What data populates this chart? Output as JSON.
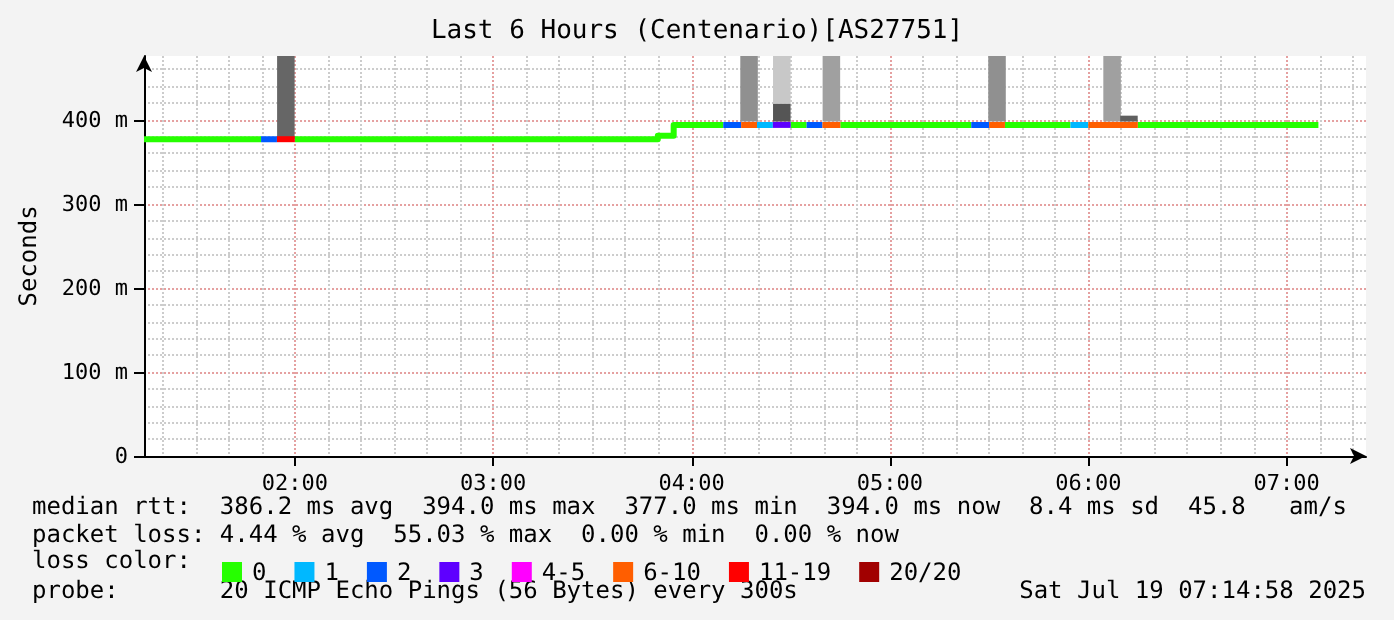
{
  "chart_data": {
    "type": "line",
    "title": "Last 6 Hours (Centenario)[AS27751]",
    "ylabel": "Seconds",
    "legend_title": "loss color:",
    "xlim": [
      1.24,
      7.4
    ],
    "xticks": [
      {
        "value": 2,
        "label": "02:00"
      },
      {
        "value": 3,
        "label": "03:00"
      },
      {
        "value": 4,
        "label": "04:00"
      },
      {
        "value": 5,
        "label": "05:00"
      },
      {
        "value": 6,
        "label": "06:00"
      },
      {
        "value": 7,
        "label": "07:00"
      }
    ],
    "ylim": [
      0,
      476
    ],
    "yticks": [
      0,
      {
        "value": 100,
        "label": "100 m"
      },
      {
        "value": 200,
        "label": "200 m"
      },
      {
        "value": 300,
        "label": "300 m"
      },
      {
        "value": 400,
        "label": "400 m"
      }
    ],
    "grid": true,
    "legend": "bottom",
    "marker": "none",
    "line_style": "solid",
    "series": [
      {
        "type": "bar",
        "x": [
          1.955,
          4.29,
          4.455,
          4.705,
          5.54,
          6.12
        ],
        "base": [
          377,
          398,
          419,
          398,
          398,
          398
        ],
        "values": [
          99,
          78,
          57,
          78,
          78,
          78
        ],
        "colors": [
          "#666666",
          "#909090",
          "#c8c8c8",
          "#a0a0a0",
          "#909090",
          "#a0a0a0"
        ]
      },
      {
        "type": "bar",
        "x": [
          4.455,
          6.205
        ],
        "base": [
          398,
          398
        ],
        "values": [
          21,
          7
        ],
        "colors": [
          "#555555",
          "#606060"
        ]
      },
      {
        "name": "0",
        "color": "#26ff00",
        "x": [
          1.24,
          1.83,
          null,
          2.0,
          3.83,
          3.83,
          3.91,
          3.91,
          4.16,
          null,
          4.5,
          4.58,
          null,
          4.75,
          5.41,
          null,
          5.58,
          5.91,
          null,
          6.25,
          7.16
        ],
        "values": [
          377,
          377,
          null,
          377,
          377,
          381,
          381,
          394,
          394,
          null,
          394,
          394,
          null,
          394,
          394,
          null,
          394,
          394,
          null,
          394,
          394
        ]
      },
      {
        "name": "1",
        "color": "#00b8ff",
        "x": [
          4.33,
          4.41,
          null,
          5.91,
          6.0
        ],
        "values": [
          394,
          394,
          null,
          394,
          394
        ]
      },
      {
        "name": "2",
        "color": "#0059ff",
        "x": [
          1.83,
          1.91,
          null,
          4.16,
          4.25,
          null,
          4.58,
          4.66,
          null,
          5.41,
          5.5
        ],
        "values": [
          377,
          377,
          null,
          394,
          394,
          null,
          394,
          394,
          null,
          394,
          394
        ]
      },
      {
        "name": "3",
        "color": "#5e00ff",
        "x": [
          4.41,
          4.5
        ],
        "values": [
          394,
          394
        ]
      },
      {
        "name": "4-5",
        "color": "#ff00ff"
      },
      {
        "name": "6-10",
        "color": "#ff5e00",
        "x": [
          4.25,
          4.33,
          null,
          4.66,
          4.75,
          null,
          5.5,
          5.58,
          null,
          6.0,
          6.25
        ],
        "values": [
          394,
          394,
          null,
          394,
          394,
          null,
          394,
          394,
          null,
          394,
          394
        ]
      },
      {
        "name": "11-19",
        "color": "#ff0000",
        "x": [
          1.91,
          2.0
        ],
        "values": [
          377,
          377
        ]
      },
      {
        "name": "20/20",
        "color": "#a10000"
      }
    ],
    "annotations": [
      "median rtt:  386.2 ms avg  394.0 ms max  377.0 ms min  394.0 ms now  8.4 ms sd  45.8   am/s",
      "packet loss: 4.44 % avg  55.03 % max  0.00 % min  0.00 % now",
      "probe:       20 ICMP Echo Pings (56 Bytes) every 300s",
      "Sat Jul 19 07:14:58 2025"
    ]
  }
}
